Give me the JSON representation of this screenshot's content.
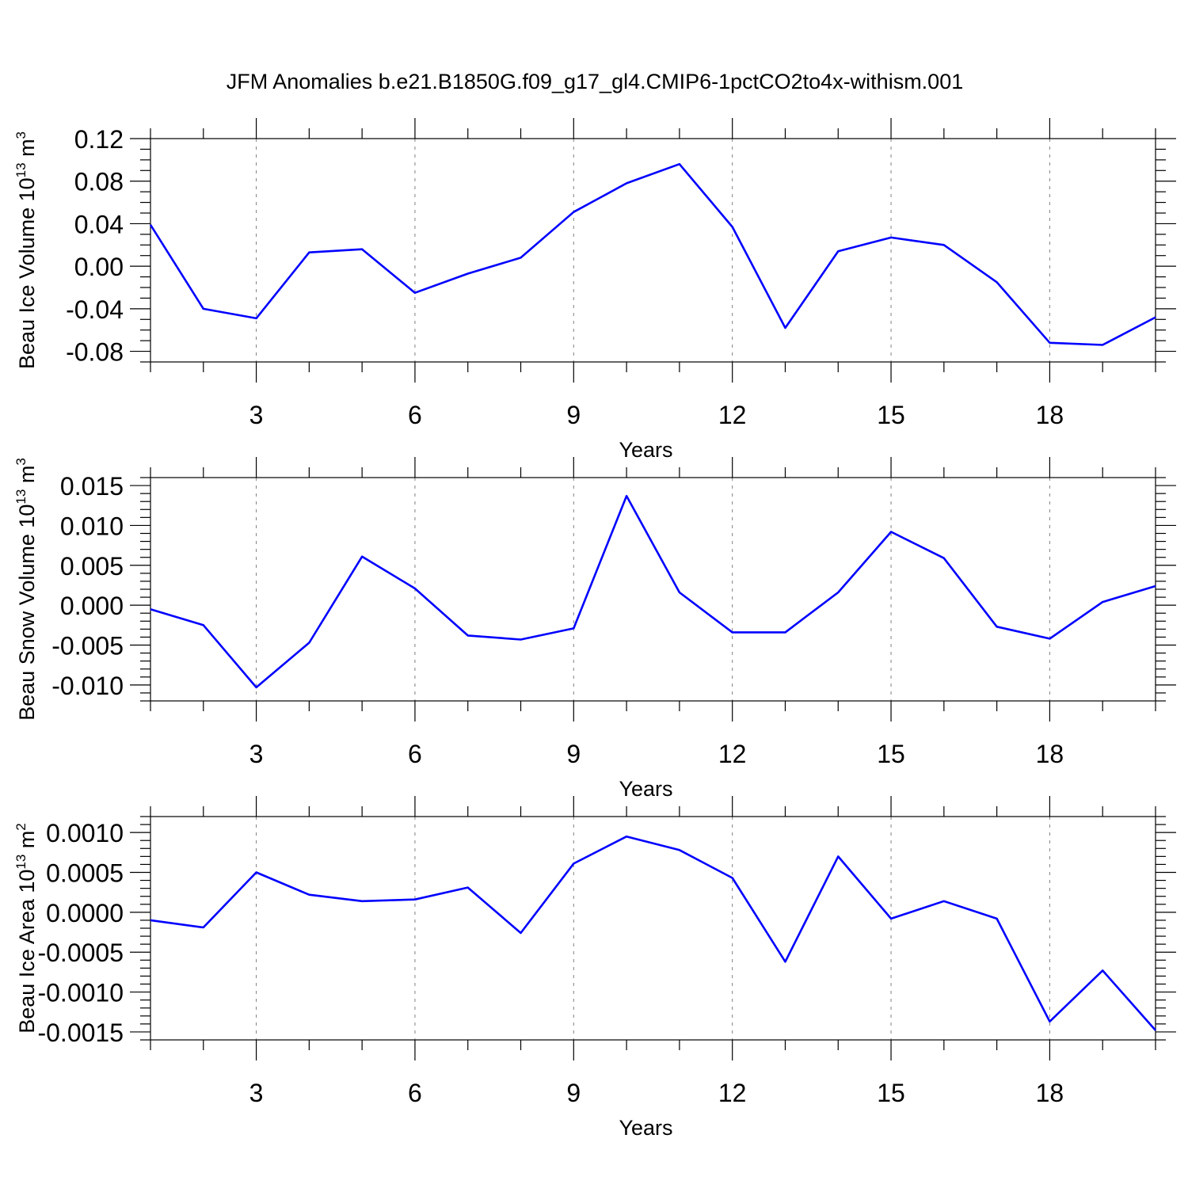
{
  "chart_data": [
    {
      "type": "line",
      "title": "JFM Anomalies b.e21.B1850G.f09_g17_gl4.CMIP6-1pctCO2to4x-withism.001",
      "xlabel": "Years",
      "ylabel": "Beau Ice Volume 10",
      "ylabel_sup": "13",
      "ylabel_unit": "m",
      "ylabel_unit_sup": "3",
      "xlim": [
        1,
        20
      ],
      "ylim": [
        -0.09,
        0.12
      ],
      "xticks": [
        3,
        6,
        9,
        12,
        15,
        18
      ],
      "xtick_labels": [
        "3",
        "6",
        "9",
        "12",
        "15",
        "18"
      ],
      "yticks": [
        0.12,
        0.08,
        0.04,
        0.0,
        -0.04,
        -0.08
      ],
      "ytick_labels": [
        "0.12",
        "0.08",
        "0.04",
        "0.00",
        "-0.04",
        "-0.08"
      ],
      "y_minor_step": 0.01,
      "color": "#0000ff",
      "x": [
        1,
        2,
        3,
        4,
        5,
        6,
        7,
        8,
        9,
        10,
        11,
        12,
        13,
        14,
        15,
        16,
        17,
        18,
        19,
        20
      ],
      "values": [
        0.039,
        -0.04,
        -0.049,
        0.013,
        0.016,
        -0.025,
        -0.007,
        0.008,
        0.051,
        0.078,
        0.096,
        0.037,
        -0.058,
        0.014,
        0.027,
        0.02,
        -0.015,
        -0.072,
        -0.074,
        -0.048
      ]
    },
    {
      "type": "line",
      "xlabel": "Years",
      "ylabel": "Beau Snow Volume 10",
      "ylabel_sup": "13",
      "ylabel_unit": "m",
      "ylabel_unit_sup": "3",
      "xlim": [
        1,
        20
      ],
      "ylim": [
        -0.012,
        0.016
      ],
      "xticks": [
        3,
        6,
        9,
        12,
        15,
        18
      ],
      "xtick_labels": [
        "3",
        "6",
        "9",
        "12",
        "15",
        "18"
      ],
      "yticks": [
        0.015,
        0.01,
        0.005,
        0.0,
        -0.005,
        -0.01
      ],
      "ytick_labels": [
        "0.015",
        "0.010",
        "0.005",
        "0.000",
        "-0.005",
        "-0.010"
      ],
      "y_minor_step": 0.001,
      "color": "#0000ff",
      "x": [
        1,
        2,
        3,
        4,
        5,
        6,
        7,
        8,
        9,
        10,
        11,
        12,
        13,
        14,
        15,
        16,
        17,
        18,
        19,
        20
      ],
      "values": [
        -0.0005,
        -0.0025,
        -0.0103,
        -0.0047,
        0.0061,
        0.0021,
        -0.0038,
        -0.0043,
        -0.0029,
        0.0137,
        0.0016,
        -0.0034,
        -0.0034,
        0.0016,
        0.0092,
        0.0059,
        -0.0027,
        -0.0042,
        0.0004,
        0.0024
      ]
    },
    {
      "type": "line",
      "xlabel": "Years",
      "ylabel": "Beau Ice Area 10",
      "ylabel_sup": "13",
      "ylabel_unit": "m",
      "ylabel_unit_sup": "2",
      "xlim": [
        1,
        20
      ],
      "ylim": [
        -0.0016,
        0.0012
      ],
      "xticks": [
        3,
        6,
        9,
        12,
        15,
        18
      ],
      "xtick_labels": [
        "3",
        "6",
        "9",
        "12",
        "15",
        "18"
      ],
      "yticks": [
        0.001,
        0.0005,
        0.0,
        -0.0005,
        -0.001,
        -0.0015
      ],
      "ytick_labels": [
        "0.0010",
        "0.0005",
        "0.0000",
        "-0.0005",
        "-0.0010",
        "-0.0015"
      ],
      "y_minor_step": 0.0001,
      "color": "#0000ff",
      "x": [
        1,
        2,
        3,
        4,
        5,
        6,
        7,
        8,
        9,
        10,
        11,
        12,
        13,
        14,
        15,
        16,
        17,
        18,
        19,
        20
      ],
      "values": [
        -0.0001,
        -0.00019,
        0.0005,
        0.00022,
        0.00014,
        0.00016,
        0.00031,
        -0.00026,
        0.00061,
        0.00095,
        0.00078,
        0.00043,
        -0.00062,
        0.0007,
        -8e-05,
        0.00014,
        -8e-05,
        -0.00137,
        -0.00073,
        -0.00148
      ]
    }
  ]
}
